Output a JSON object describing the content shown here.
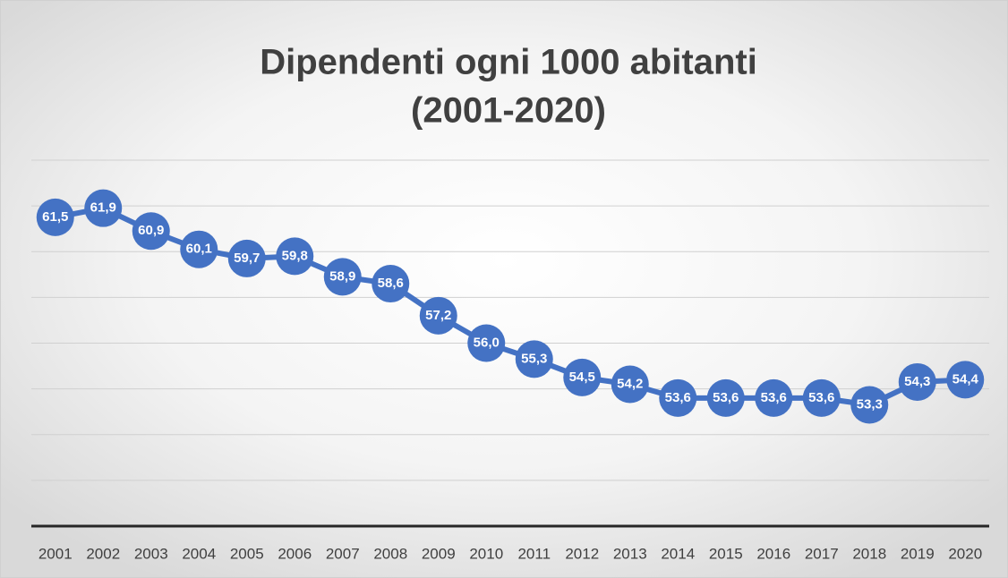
{
  "chart_data": {
    "type": "line",
    "title": [
      "Dipendenti ogni 1000 abitanti",
      "(2001-2020)"
    ],
    "categories": [
      "2001",
      "2002",
      "2003",
      "2004",
      "2005",
      "2006",
      "2007",
      "2008",
      "2009",
      "2010",
      "2011",
      "2012",
      "2013",
      "2014",
      "2015",
      "2016",
      "2017",
      "2018",
      "2019",
      "2020"
    ],
    "values": [
      61.5,
      61.9,
      60.9,
      60.1,
      59.7,
      59.8,
      58.9,
      58.6,
      57.2,
      56.0,
      55.3,
      54.5,
      54.2,
      53.6,
      53.6,
      53.6,
      53.6,
      53.3,
      54.3,
      54.4
    ],
    "value_labels": [
      "61,5",
      "61,9",
      "60,9",
      "60,1",
      "59,7",
      "59,8",
      "58,9",
      "58,6",
      "57,2",
      "56,0",
      "55,3",
      "54,5",
      "54,2",
      "53,6",
      "53,6",
      "53,6",
      "53,6",
      "53,3",
      "54,3",
      "54,4"
    ],
    "color": "#4472c4",
    "ylim": [
      48,
      64
    ],
    "yticks": [
      48,
      50,
      52,
      54,
      56,
      58,
      60,
      62,
      64
    ],
    "grid": true
  }
}
